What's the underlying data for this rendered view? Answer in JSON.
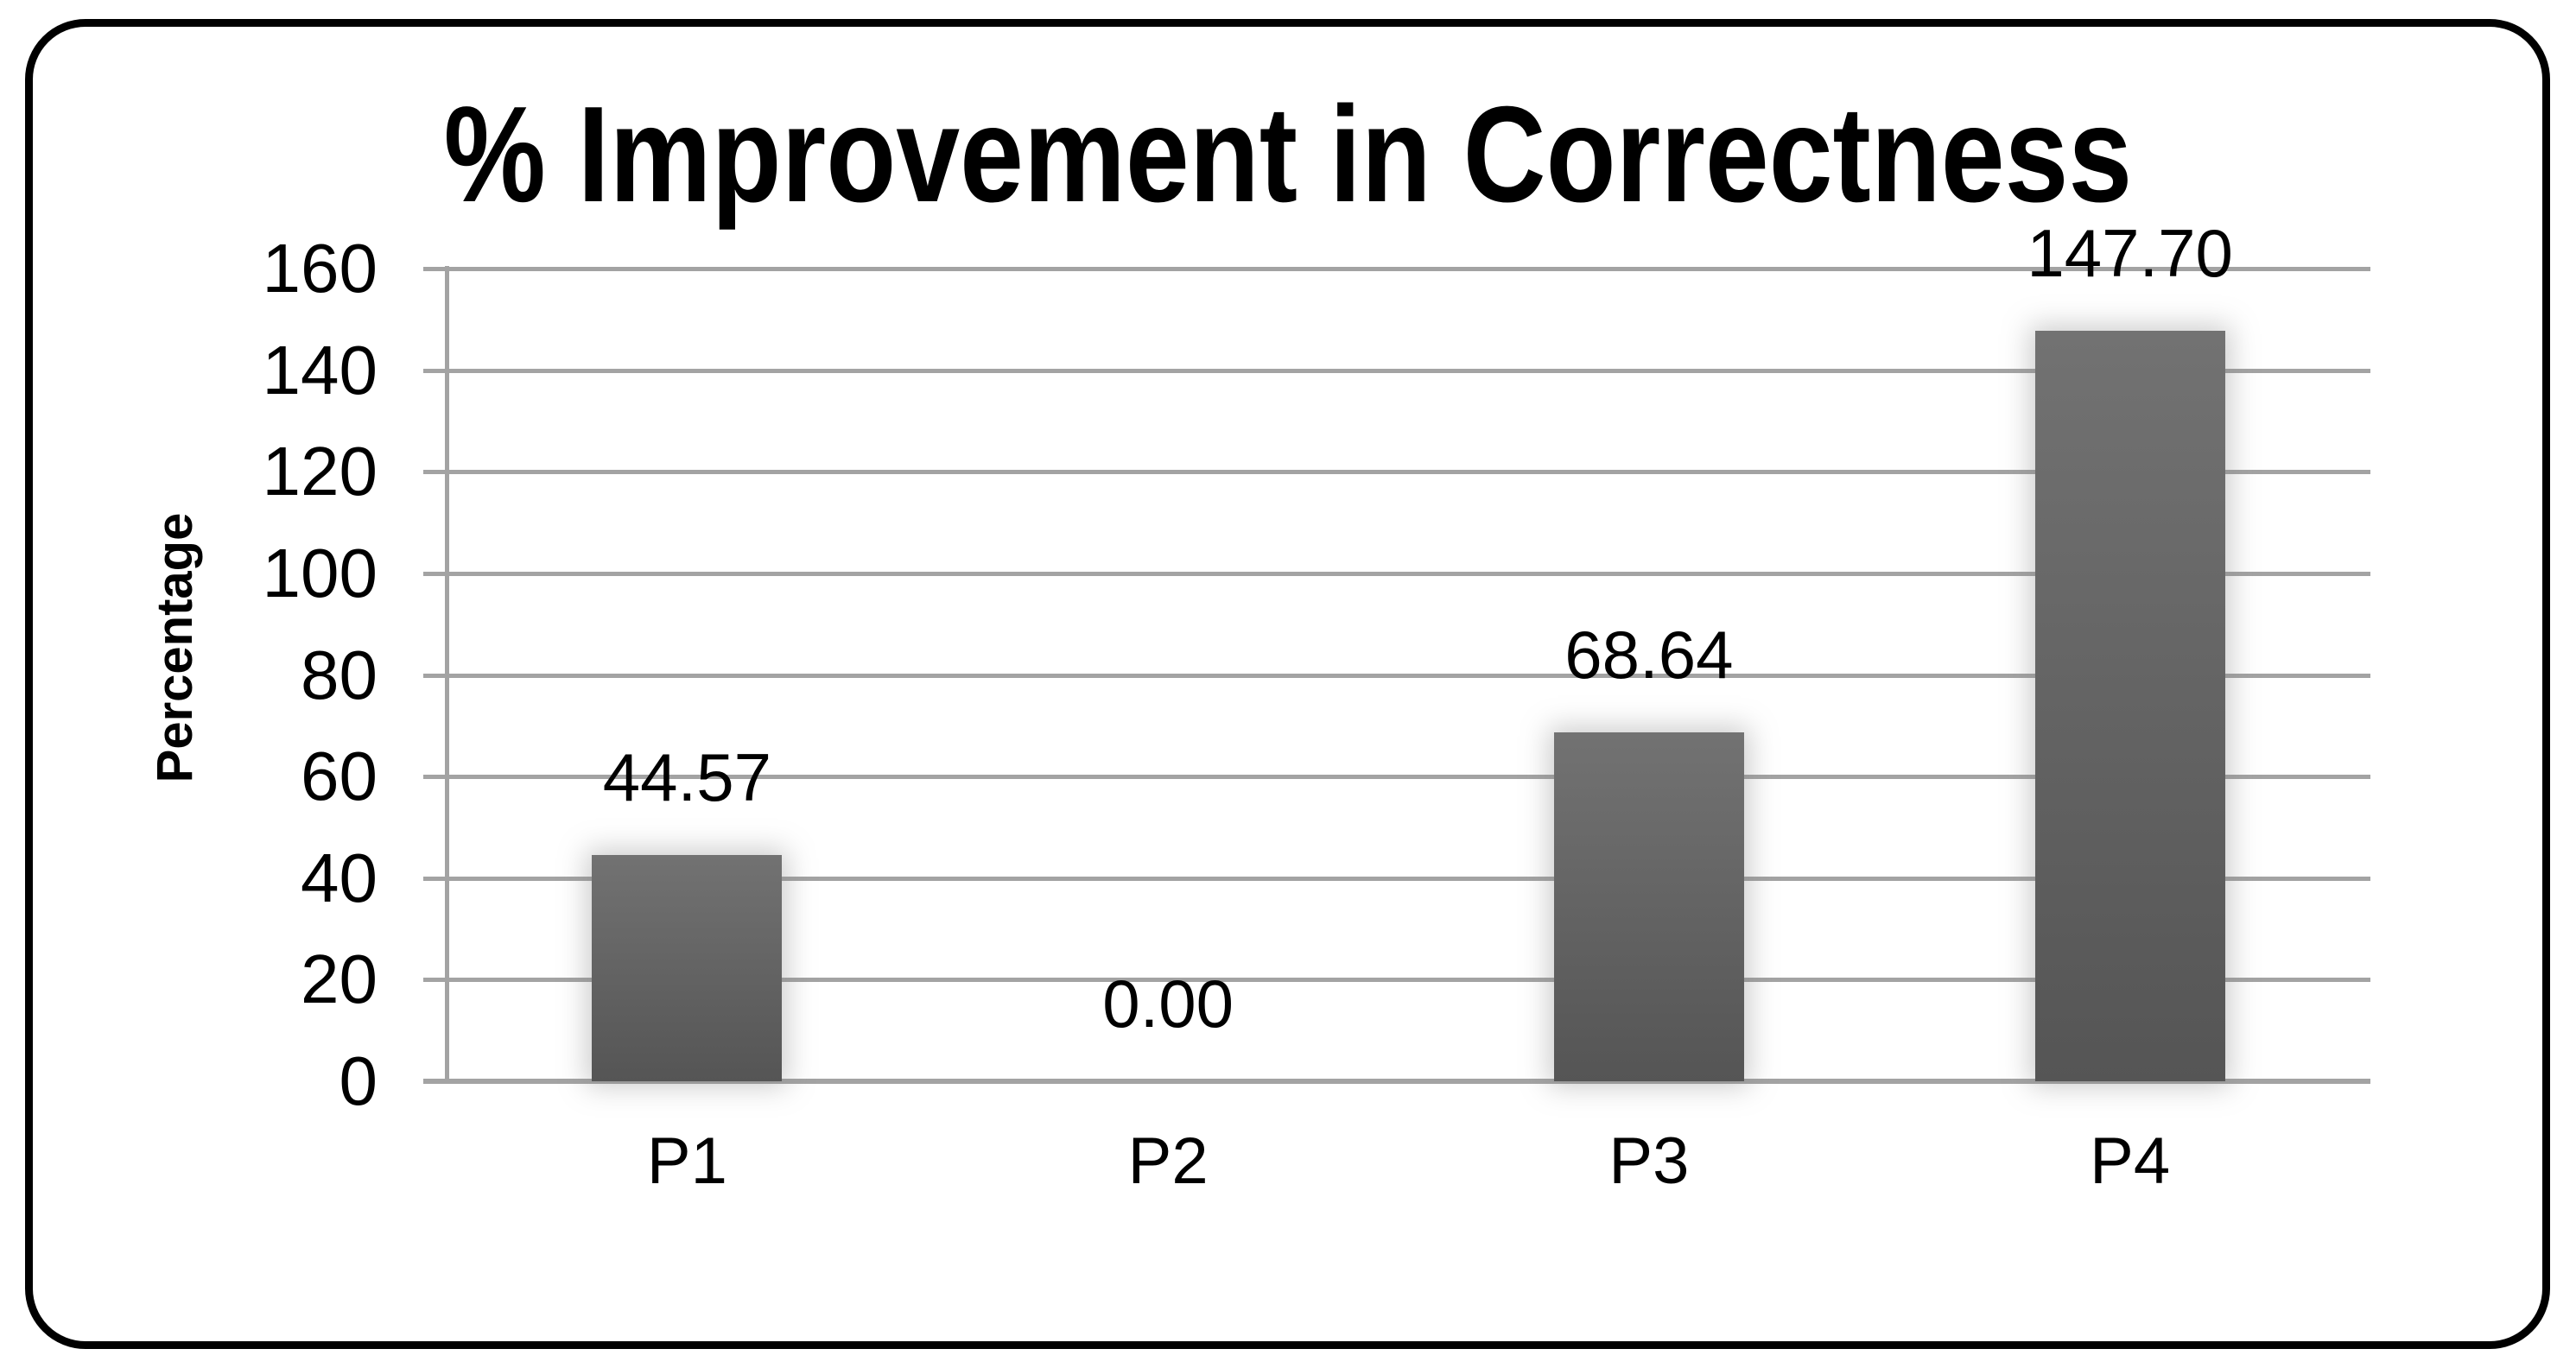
{
  "figure": {
    "background": "#ffffff",
    "border_color": "#000000"
  },
  "chart_data": {
    "type": "bar",
    "title": "% Improvement in Correctness",
    "ylabel": "Percentage",
    "xlabel": "",
    "categories": [
      "P1",
      "P2",
      "P3",
      "P4"
    ],
    "values": [
      44.57,
      0.0,
      68.64,
      147.7
    ],
    "data_labels": [
      "44.57",
      "0.00",
      "68.64",
      "147.70"
    ],
    "ylim": [
      0,
      160
    ],
    "yticks": [
      0,
      20,
      40,
      60,
      80,
      100,
      120,
      140,
      160
    ],
    "grid": true,
    "legend_position": "none",
    "bar_color_top": "#727272",
    "bar_color_bottom": "#555555",
    "gridline_color": "#a3a3a3",
    "text_color": "#000000"
  }
}
